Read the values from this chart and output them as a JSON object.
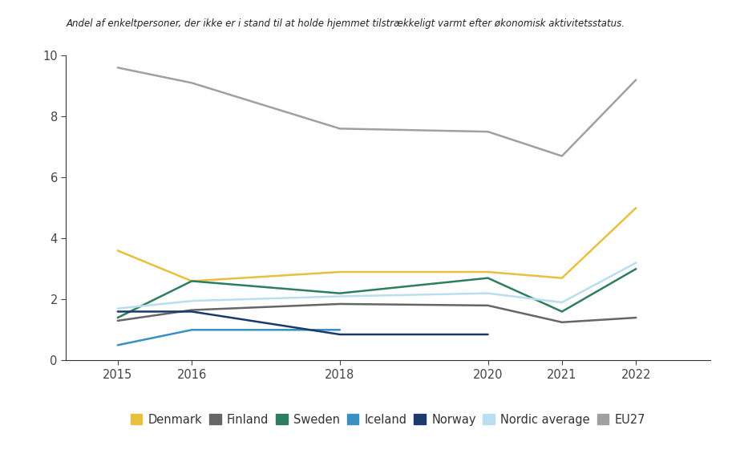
{
  "title": "Andel af enkeltpersoner, der ikke er i stand til at holde hjemmet tilstrækkeligt varmt efter økonomisk aktivitetsstatus.",
  "years": [
    2015,
    2016,
    2018,
    2020,
    2021,
    2022
  ],
  "series": {
    "Denmark": {
      "values": [
        3.6,
        2.6,
        2.9,
        2.9,
        2.7,
        5.0
      ],
      "color": "#E8C040"
    },
    "Finland": {
      "values": [
        1.3,
        1.65,
        1.85,
        1.8,
        1.25,
        1.4
      ],
      "color": "#666666"
    },
    "Sweden": {
      "values": [
        1.4,
        2.6,
        2.2,
        2.7,
        1.6,
        3.0
      ],
      "color": "#2E7D5E"
    },
    "Iceland": {
      "values": [
        0.5,
        1.0,
        1.0,
        null,
        null,
        null
      ],
      "color": "#3A8FC4"
    },
    "Norway": {
      "values": [
        1.6,
        1.6,
        0.85,
        0.85,
        null,
        null
      ],
      "color": "#1A3A6B"
    },
    "Nordic average": {
      "values": [
        1.7,
        1.95,
        2.1,
        2.2,
        1.9,
        3.2
      ],
      "color": "#BBDDF0"
    },
    "EU27": {
      "values": [
        9.6,
        9.1,
        7.6,
        7.5,
        6.7,
        9.2
      ],
      "color": "#A0A0A0"
    }
  },
  "ylim": [
    0,
    10
  ],
  "yticks": [
    0,
    2,
    4,
    6,
    8,
    10
  ],
  "xlim": [
    2014.3,
    2023.0
  ],
  "background_color": "#ffffff",
  "title_fontsize": 8.5,
  "tick_fontsize": 10.5,
  "legend_fontsize": 10.5,
  "linewidth": 1.8
}
